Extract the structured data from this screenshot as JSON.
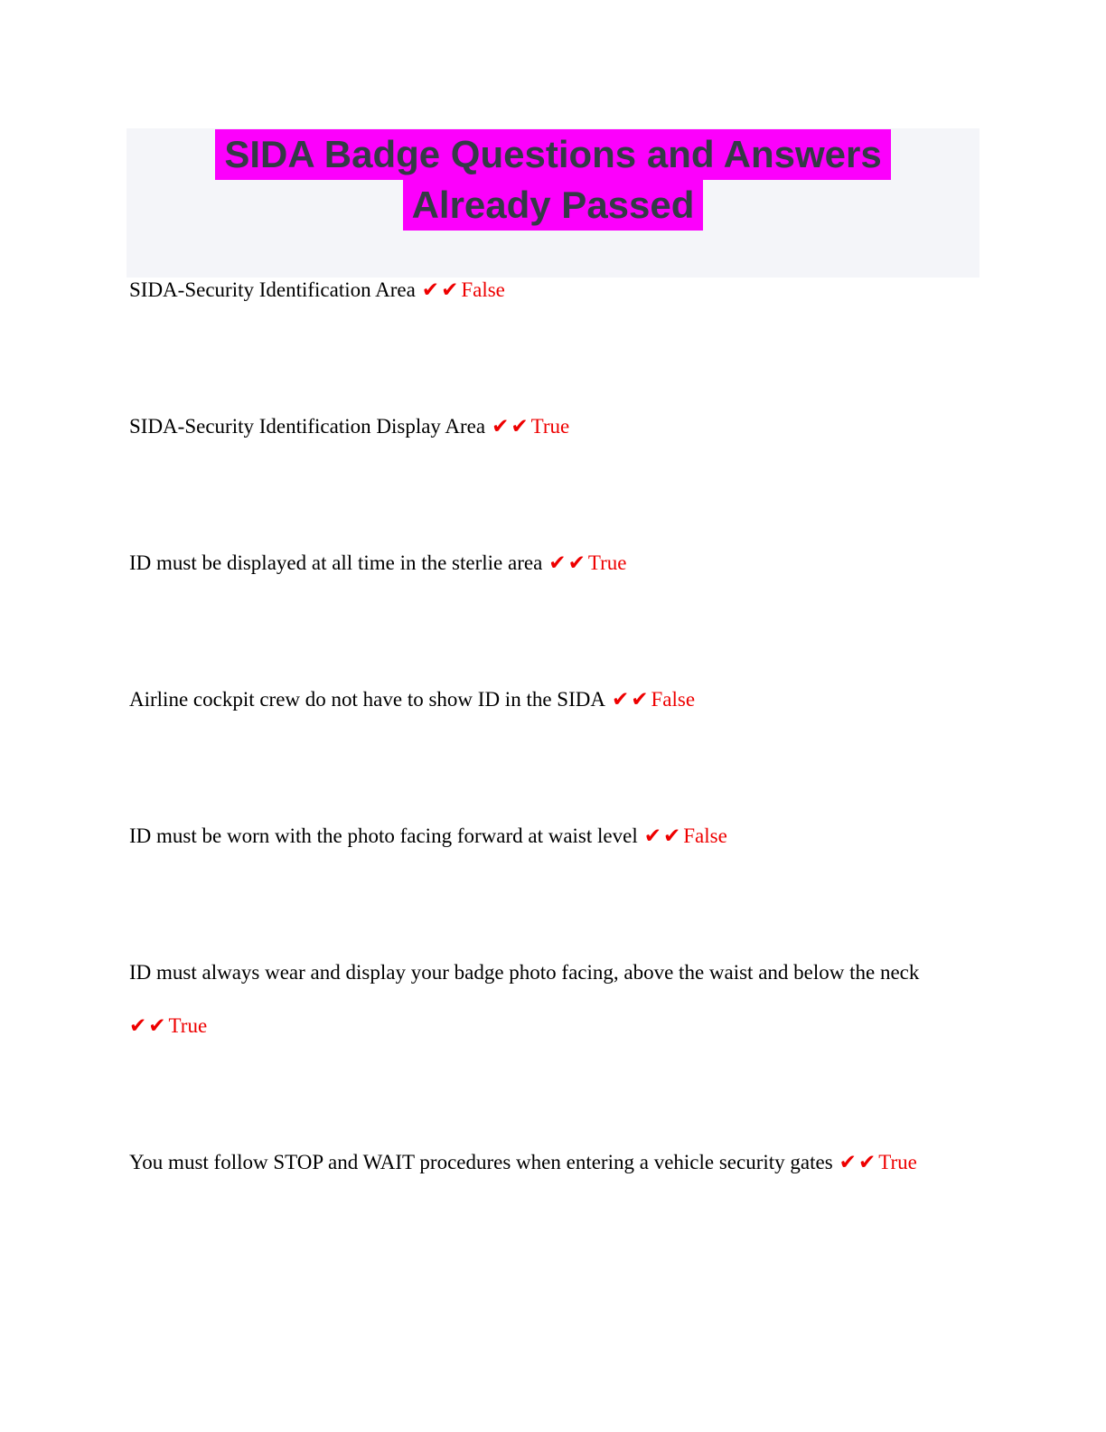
{
  "header": {
    "title_line1": "SIDA Badge Questions and Answers",
    "title_line2": "Already Passed",
    "highlight_color": "#fc00fc",
    "banner_background": "#f4f5f9",
    "title_text_color": "#343a46"
  },
  "check_marks": "✔✔",
  "answer_color": "#ee0000",
  "qa_items": [
    {
      "question": "SIDA-Security Identification Area",
      "answer": "False"
    },
    {
      "question": "SIDA-Security Identification Display Area",
      "answer": "True"
    },
    {
      "question": "ID must be displayed at all time in the sterlie area",
      "answer": "True"
    },
    {
      "question": "Airline cockpit crew do not have to show ID in the SIDA",
      "answer": "False"
    },
    {
      "question": "ID must be worn with the photo facing forward at waist level",
      "answer": "False"
    },
    {
      "question": "ID must always wear and display your badge photo facing, above the waist and below the neck",
      "answer": "True"
    },
    {
      "question": "You must follow STOP and WAIT procedures when entering a vehicle security gates",
      "answer": "True"
    }
  ]
}
